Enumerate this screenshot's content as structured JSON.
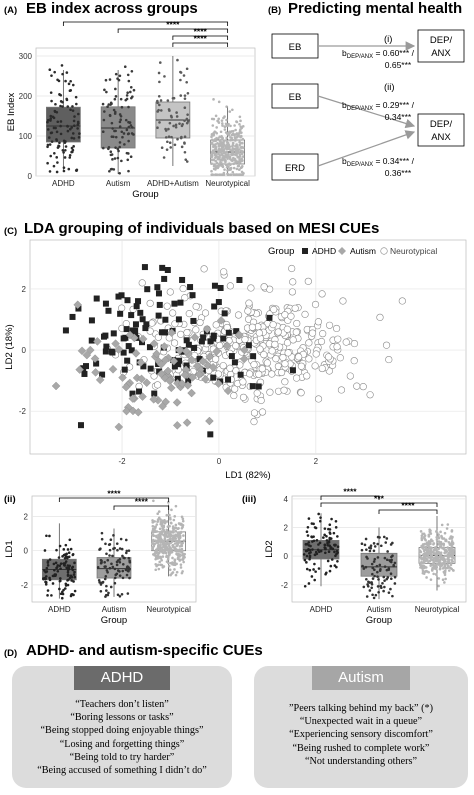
{
  "panel_a": {
    "label": "(A)",
    "title": "EB index across groups",
    "chart_data": {
      "type": "box",
      "categories": [
        "ADHD",
        "Autism",
        "ADHD+Autism",
        "Neurotypical"
      ],
      "boxes": [
        {
          "q1": 85,
          "median": 125,
          "q3": 172,
          "lower": 10,
          "upper": 265
        },
        {
          "q1": 70,
          "median": 120,
          "q3": 173,
          "lower": 5,
          "upper": 265
        },
        {
          "q1": 95,
          "median": 140,
          "q3": 185,
          "lower": 25,
          "upper": 300
        },
        {
          "q1": 30,
          "median": 60,
          "q3": 90,
          "lower": 0,
          "upper": 175
        }
      ],
      "box_colors": [
        "#5f5f5f",
        "#8a8a8a",
        "#c4c4c4",
        "#f2f2f2"
      ],
      "xlabel": "Group",
      "ylabel": "EB Index",
      "ylim": [
        0,
        320
      ],
      "yticks": [
        0,
        100,
        200,
        300
      ],
      "significance": [
        "****",
        "****",
        "****",
        "****"
      ]
    }
  },
  "panel_b": {
    "label": "(B)",
    "title": "Predicting mental health",
    "model_i": {
      "label": "(i)",
      "predictor": "EB",
      "outcome_line1": "DEP/",
      "outcome_line2": "ANX",
      "coef_prefix": "b",
      "coef_sub": "DEP/ANX",
      "coef_line1": " = 0.60*** /",
      "coef_line2": "0.65***"
    },
    "model_ii": {
      "label": "(ii)",
      "predictor1": "EB",
      "predictor2": "ERD",
      "outcome_line1": "DEP/",
      "outcome_line2": "ANX",
      "coef_prefix": "b",
      "coef_sub": "DEP/ANX",
      "coef1_line1": " = 0.29*** /",
      "coef1_line2": "0.34***",
      "coef2_line1": " = 0.34*** /",
      "coef2_line2": "0.36***"
    }
  },
  "panel_c": {
    "label": "(C)",
    "title": "LDA grouping of individuals based on MESI CUEs",
    "chart_data": {
      "type": "scatter",
      "xlabel": "LD1 (82%)",
      "ylabel": "LD2 (18%)",
      "xlim": [
        -3.9,
        5.1
      ],
      "ylim": [
        -3.4,
        3.6
      ],
      "xticks": [
        -2,
        0,
        2
      ],
      "yticks": [
        -2,
        0,
        2
      ],
      "legend_title": "Group",
      "legend_position": "top-right",
      "series": [
        {
          "name": "ADHD",
          "marker": "square",
          "color": "#222222",
          "n": 120,
          "mean_x": -1.2,
          "mean_y": 0.4,
          "sd_x": 1.0,
          "sd_y": 1.0
        },
        {
          "name": "Autism",
          "marker": "diamond",
          "color": "#a8a8a8",
          "n": 95,
          "mean_x": -1.1,
          "mean_y": -0.7,
          "sd_x": 0.9,
          "sd_y": 0.9
        },
        {
          "name": "Neurotypical",
          "marker": "circle",
          "color": "#ffffff",
          "n": 430,
          "mean_x": 0.6,
          "mean_y": 0.1,
          "sd_x": 1.1,
          "sd_y": 0.9
        }
      ]
    }
  },
  "panel_ii": {
    "label": "(ii)",
    "chart_data": {
      "type": "box",
      "categories": [
        "ADHD",
        "Autism",
        "Neurotypical"
      ],
      "boxes": [
        {
          "q1": -1.7,
          "median": -1.1,
          "q3": -0.5,
          "lower": -2.8,
          "upper": 1.6
        },
        {
          "q1": -1.6,
          "median": -1.05,
          "q3": -0.4,
          "lower": -2.7,
          "upper": 1.3
        },
        {
          "q1": 0.0,
          "median": 0.55,
          "q3": 1.1,
          "lower": -1.5,
          "upper": 2.7
        }
      ],
      "box_colors": [
        "#6e6e6e",
        "#9d9d9d",
        "#ffffff"
      ],
      "xlabel": "Group",
      "ylabel": "LD1",
      "ylim": [
        -3.0,
        3.2
      ],
      "yticks": [
        -2,
        0,
        2
      ],
      "significance": [
        "****",
        "****"
      ]
    }
  },
  "panel_iii": {
    "label": "(iii)",
    "chart_data": {
      "type": "box",
      "categories": [
        "ADHD",
        "Autism",
        "Neurotypical"
      ],
      "boxes": [
        {
          "q1": -0.2,
          "median": 0.45,
          "q3": 1.1,
          "lower": -2.1,
          "upper": 3.0
        },
        {
          "q1": -1.4,
          "median": -0.75,
          "q3": 0.2,
          "lower": -3.0,
          "upper": 2.0
        },
        {
          "q1": -0.5,
          "median": 0.05,
          "q3": 0.6,
          "lower": -2.4,
          "upper": 2.8
        }
      ],
      "box_colors": [
        "#6e6e6e",
        "#9d9d9d",
        "#ffffff"
      ],
      "xlabel": "Group",
      "ylabel": "LD2",
      "ylim": [
        -3.2,
        4.2
      ],
      "yticks": [
        -2,
        0,
        2,
        4
      ],
      "significance": [
        "****",
        "***",
        "****"
      ]
    }
  },
  "panel_d": {
    "label": "(D)",
    "title": "ADHD- and autism-specific CUEs",
    "adhd": {
      "header": "ADHD",
      "header_color": "#6b6b6b",
      "items": [
        "“Teachers don’t listen”",
        "“Boring lessons or tasks”",
        "“Being stopped doing enjoyable things”",
        "“Losing and forgetting things”",
        "“Being told to try harder”",
        "“Being accused of something I didn’t do”"
      ]
    },
    "autism": {
      "header": "Autism",
      "header_color": "#a6a6a6",
      "items": [
        "”Peers talking behind my back” (*)",
        "“Unexpected wait in a queue”",
        "“Experiencing sensory discomfort”",
        "“Being rushed to complete work”",
        "“Not understanding others”"
      ]
    }
  }
}
